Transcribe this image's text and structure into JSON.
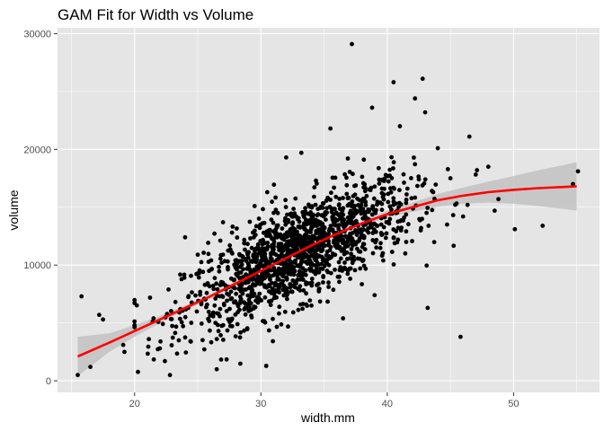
{
  "chart_data": {
    "type": "scatter",
    "title": "GAM Fit for Width vs Volume",
    "xlabel": "width.mm",
    "ylabel": "volume",
    "xlim": [
      13.9,
      56.8
    ],
    "ylim": [
      -1000,
      30500
    ],
    "x_ticks": [
      20,
      30,
      40,
      50
    ],
    "x_tick_labels": [
      "20",
      "30",
      "40",
      "50"
    ],
    "y_ticks": [
      0,
      10000,
      20000,
      30000
    ],
    "y_tick_labels": [
      "0",
      "10000",
      "20000",
      "30000"
    ],
    "colors": {
      "panel": "#e5e5e5",
      "grid_major": "#ffffff",
      "points": "#000000",
      "fit_line": "#ff0000",
      "confidence_band": "#bfbfbf"
    },
    "fit": {
      "name": "GAM fit",
      "x": [
        15.5,
        18,
        20,
        22,
        24,
        26,
        28,
        30,
        32,
        34,
        36,
        38,
        40,
        42,
        44,
        46,
        48,
        50,
        52,
        54,
        55
      ],
      "y": [
        2100,
        3300,
        4300,
        5300,
        6300,
        7300,
        8400,
        9500,
        10600,
        11700,
        12700,
        13600,
        14400,
        15000,
        15600,
        16000,
        16300,
        16500,
        16650,
        16750,
        16800
      ],
      "lower": [
        400,
        2500,
        3800,
        5000,
        6100,
        7100,
        8200,
        9350,
        10450,
        11550,
        12550,
        13400,
        14100,
        14600,
        15050,
        15300,
        15400,
        15300,
        15100,
        14850,
        14700
      ],
      "upper": [
        3800,
        4100,
        4800,
        5600,
        6500,
        7500,
        8600,
        9650,
        10750,
        11850,
        12850,
        13800,
        14700,
        15400,
        16150,
        16700,
        17200,
        17700,
        18200,
        18650,
        18900
      ]
    },
    "outliers": [
      {
        "x": 15.5,
        "y": 500
      },
      {
        "x": 15.8,
        "y": 7300
      },
      {
        "x": 16.5,
        "y": 1200
      },
      {
        "x": 17.2,
        "y": 5700
      },
      {
        "x": 17.5,
        "y": 5300
      },
      {
        "x": 19.1,
        "y": 3100
      },
      {
        "x": 19.2,
        "y": 2500
      },
      {
        "x": 21.5,
        "y": 5400
      },
      {
        "x": 22.4,
        "y": 1700
      },
      {
        "x": 26.5,
        "y": 1000
      },
      {
        "x": 37.2,
        "y": 29100
      },
      {
        "x": 38.8,
        "y": 23600
      },
      {
        "x": 40.5,
        "y": 25800
      },
      {
        "x": 42.2,
        "y": 24400
      },
      {
        "x": 42.8,
        "y": 26100
      },
      {
        "x": 43.0,
        "y": 23200
      },
      {
        "x": 43.2,
        "y": 6300
      },
      {
        "x": 45.8,
        "y": 3800
      },
      {
        "x": 46.5,
        "y": 21100
      },
      {
        "x": 47.1,
        "y": 18200
      },
      {
        "x": 48.0,
        "y": 18500
      },
      {
        "x": 48.5,
        "y": 14700
      },
      {
        "x": 48.8,
        "y": 15700
      },
      {
        "x": 50.1,
        "y": 13100
      },
      {
        "x": 52.3,
        "y": 13400
      },
      {
        "x": 54.7,
        "y": 17000
      },
      {
        "x": 55.1,
        "y": 18100
      },
      {
        "x": 35.5,
        "y": 21800
      },
      {
        "x": 33.2,
        "y": 19700
      },
      {
        "x": 32.0,
        "y": 19300
      },
      {
        "x": 25.0,
        "y": 10900
      },
      {
        "x": 24.0,
        "y": 12400
      },
      {
        "x": 27.0,
        "y": 13700
      },
      {
        "x": 29.5,
        "y": 15100
      },
      {
        "x": 30.5,
        "y": 16300
      },
      {
        "x": 44.0,
        "y": 20100
      },
      {
        "x": 41.5,
        "y": 12000
      },
      {
        "x": 45.0,
        "y": 17500
      },
      {
        "x": 46.0,
        "y": 14200
      },
      {
        "x": 36.5,
        "y": 5400
      },
      {
        "x": 34.0,
        "y": 6500
      },
      {
        "x": 23.5,
        "y": 3500
      },
      {
        "x": 22.0,
        "y": 2800
      },
      {
        "x": 39.0,
        "y": 7400
      },
      {
        "x": 41.0,
        "y": 22000
      }
    ],
    "cluster": {
      "n_points": 1500,
      "x_mean": 33,
      "x_sd": 4.5,
      "x_range": [
        20,
        47
      ],
      "residual_sd": 2100
    }
  }
}
